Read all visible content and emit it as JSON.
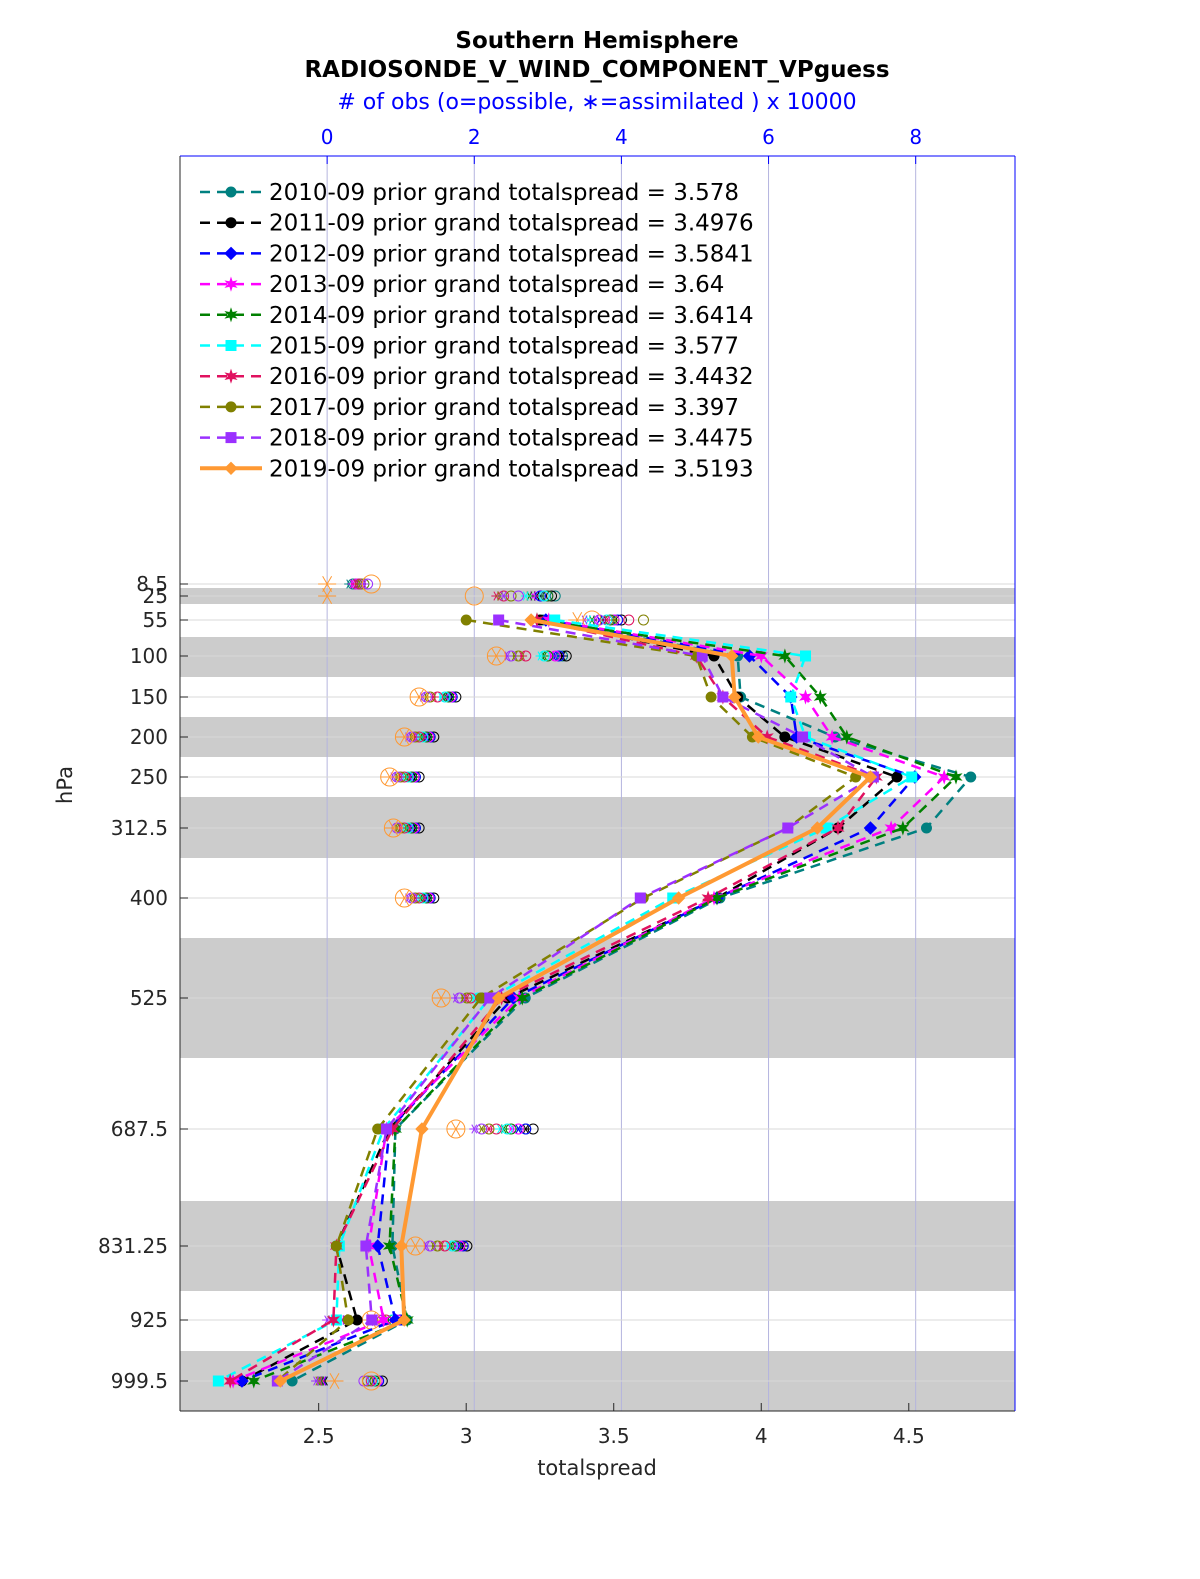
{
  "chart_data": {
    "type": "line",
    "title": "Southern Hemisphere",
    "subtitle": "RADIOSONDE_V_WIND_COMPONENT_VPguess",
    "top_axis_label": "# of obs (o=possible, ∗=assimilated ) x 10000",
    "xlabel": "totalspread",
    "ylabel": "hPa",
    "xlim": [
      2.03,
      4.86
    ],
    "x_ticks": [
      "2.5",
      "3",
      "3.5",
      "4",
      "4.5"
    ],
    "top_xlim": [
      -2.0,
      9.35
    ],
    "top_ticks": [
      "0",
      "2",
      "4",
      "6",
      "8"
    ],
    "y_levels": [
      8.5,
      25,
      55,
      100,
      150,
      200,
      250,
      312.5,
      400,
      525,
      687.5,
      831.25,
      925,
      999.5
    ],
    "y_tick_labels": [
      "8.5",
      "25",
      "55",
      "100",
      "150",
      "200",
      "250",
      "312.5",
      "400",
      "525",
      "687.5",
      "831.25",
      "925",
      "999.5"
    ],
    "y_direction": "reversed",
    "grid": true,
    "legend_position": "top-left",
    "series": [
      {
        "name": "2010-09 prior grand totalspread = 3.578",
        "color": "#008080",
        "marker": "circle",
        "style": "dashed",
        "values": [
          null,
          null,
          3.26,
          3.92,
          3.93,
          4.25,
          4.71,
          4.56,
          3.86,
          3.2,
          2.76,
          2.75,
          2.8,
          2.41
        ]
      },
      {
        "name": "2011-09 prior grand totalspread = 3.4976",
        "color": "#000000",
        "marker": "circle",
        "style": "dashed",
        "values": [
          null,
          null,
          3.25,
          3.84,
          3.92,
          4.08,
          4.46,
          4.26,
          3.85,
          3.14,
          2.74,
          2.56,
          2.63,
          2.24
        ]
      },
      {
        "name": "2012-09 prior grand totalspread = 3.5841",
        "color": "#0000ff",
        "marker": "diamond",
        "style": "dashed",
        "values": [
          null,
          null,
          3.27,
          3.96,
          4.1,
          4.12,
          4.52,
          4.37,
          3.85,
          3.16,
          2.74,
          2.7,
          2.76,
          2.24
        ]
      },
      {
        "name": "2013-09 prior grand totalspread = 3.64",
        "color": "#ff00ff",
        "marker": "star",
        "style": "dashed",
        "values": [
          null,
          null,
          3.28,
          4.0,
          4.15,
          4.24,
          4.62,
          4.44,
          3.84,
          3.18,
          2.73,
          2.67,
          2.72,
          2.21
        ]
      },
      {
        "name": "2014-09 prior grand totalspread = 3.6414",
        "color": "#008000",
        "marker": "star",
        "style": "dashed",
        "values": [
          null,
          null,
          3.24,
          4.08,
          4.2,
          4.29,
          4.66,
          4.48,
          3.85,
          3.19,
          2.76,
          2.74,
          2.8,
          2.28
        ]
      },
      {
        "name": "2015-09 prior grand totalspread = 3.577",
        "color": "#00ffff",
        "marker": "square",
        "style": "dashed",
        "values": [
          null,
          null,
          3.3,
          4.15,
          4.1,
          4.15,
          4.51,
          4.22,
          3.7,
          3.08,
          2.72,
          2.57,
          2.56,
          2.16
        ]
      },
      {
        "name": "2016-09 prior grand totalspread = 3.4432",
        "color": "#e0115f",
        "marker": "star",
        "style": "dashed",
        "values": [
          null,
          null,
          3.24,
          3.78,
          3.87,
          4.02,
          4.39,
          4.26,
          3.82,
          3.12,
          2.75,
          2.56,
          2.55,
          2.2
        ]
      },
      {
        "name": "2017-09 prior grand totalspread = 3.397",
        "color": "#808000",
        "marker": "circle",
        "style": "dashed",
        "values": [
          null,
          null,
          3.0,
          3.78,
          3.83,
          3.97,
          4.32,
          4.09,
          3.6,
          3.05,
          2.7,
          2.56,
          2.6,
          2.36
        ]
      },
      {
        "name": "2018-09 prior grand totalspread = 3.4475",
        "color": "#9b30ff",
        "marker": "square",
        "style": "dashed",
        "values": [
          null,
          null,
          3.11,
          3.8,
          3.87,
          4.14,
          4.38,
          4.09,
          3.59,
          3.08,
          2.73,
          2.66,
          2.68,
          2.36
        ]
      },
      {
        "name": "2019-09 prior grand totalspread = 3.5193",
        "color": "#ff9933",
        "marker": "diamond",
        "style": "solid",
        "values": [
          null,
          null,
          3.22,
          3.9,
          3.91,
          3.99,
          4.37,
          4.19,
          3.72,
          3.11,
          2.85,
          2.78,
          2.79,
          2.37
        ]
      }
    ],
    "obs_counts_x10000": {
      "possible": [
        [
          0.35,
          3.1,
          3.9,
          3.2,
          1.7,
          1.4,
          1.2,
          1.2,
          1.4,
          2.2,
          2.7,
          1.8,
          1.0,
          0.7
        ],
        [
          0.4,
          3.05,
          4.0,
          3.25,
          1.75,
          1.45,
          1.25,
          1.25,
          1.45,
          2.3,
          2.8,
          1.9,
          1.05,
          0.75
        ],
        [
          0.45,
          2.9,
          3.95,
          3.15,
          1.7,
          1.4,
          1.2,
          1.2,
          1.4,
          2.2,
          2.7,
          1.85,
          1.0,
          0.7
        ],
        [
          0.4,
          3.0,
          3.9,
          3.1,
          1.68,
          1.38,
          1.18,
          1.18,
          1.38,
          2.15,
          2.6,
          1.8,
          0.95,
          0.68
        ],
        [
          0.45,
          3.0,
          3.85,
          3.0,
          1.65,
          1.35,
          1.15,
          1.15,
          1.35,
          2.1,
          2.5,
          1.75,
          0.9,
          0.65
        ],
        [
          0.5,
          2.95,
          3.8,
          2.95,
          1.6,
          1.3,
          1.1,
          1.1,
          1.3,
          2.05,
          2.45,
          1.7,
          0.88,
          0.62
        ],
        [
          0.45,
          2.4,
          4.1,
          2.7,
          1.5,
          1.25,
          1.05,
          1.05,
          1.25,
          1.95,
          2.3,
          1.6,
          0.8,
          0.6
        ],
        [
          0.5,
          2.5,
          4.3,
          2.6,
          1.4,
          1.2,
          1.0,
          1.0,
          1.2,
          1.9,
          2.2,
          1.5,
          0.75,
          0.55
        ],
        [
          0.55,
          2.6,
          3.7,
          2.5,
          1.35,
          1.15,
          0.95,
          0.95,
          1.15,
          1.8,
          2.1,
          1.4,
          0.7,
          0.5
        ],
        [
          0.6,
          2.0,
          3.6,
          2.3,
          1.25,
          1.05,
          0.85,
          0.9,
          1.05,
          1.55,
          1.75,
          1.2,
          0.6,
          0.6
        ]
      ],
      "assimilated": [
        [
          0.3,
          2.9,
          3.7,
          3.15,
          1.65,
          1.35,
          1.15,
          1.15,
          1.35,
          2.15,
          2.6,
          1.75,
          0.25,
          -0.05
        ],
        [
          0.35,
          2.85,
          3.75,
          3.2,
          1.7,
          1.4,
          1.2,
          1.2,
          1.4,
          2.25,
          2.7,
          1.85,
          0.3,
          -0.03
        ],
        [
          0.35,
          2.8,
          3.7,
          3.1,
          1.65,
          1.35,
          1.15,
          1.15,
          1.35,
          2.15,
          2.6,
          1.8,
          0.25,
          -0.05
        ],
        [
          0.35,
          2.8,
          3.65,
          3.05,
          1.62,
          1.33,
          1.13,
          1.13,
          1.33,
          2.1,
          2.5,
          1.75,
          0.2,
          -0.06
        ],
        [
          0.4,
          2.75,
          3.6,
          2.95,
          1.6,
          1.3,
          1.1,
          1.1,
          1.3,
          2.05,
          2.4,
          1.7,
          0.15,
          -0.08
        ],
        [
          0.45,
          2.7,
          3.55,
          2.9,
          1.55,
          1.25,
          1.05,
          1.05,
          1.25,
          2.0,
          2.35,
          1.65,
          0.12,
          -0.1
        ],
        [
          0.4,
          2.3,
          3.8,
          2.65,
          1.45,
          1.2,
          1.0,
          1.0,
          1.2,
          1.9,
          2.2,
          1.55,
          0.1,
          -0.1
        ],
        [
          0.45,
          2.35,
          3.9,
          2.55,
          1.35,
          1.15,
          0.95,
          0.95,
          1.15,
          1.85,
          2.1,
          1.45,
          0.05,
          -0.12
        ],
        [
          0.5,
          2.4,
          3.5,
          2.45,
          1.3,
          1.1,
          0.9,
          0.9,
          1.1,
          1.75,
          2.0,
          1.35,
          0.0,
          -0.15
        ],
        [
          0.0,
          0.0,
          3.4,
          2.3,
          1.25,
          1.05,
          0.85,
          0.9,
          1.05,
          1.55,
          1.75,
          1.2,
          0.6,
          0.1
        ]
      ]
    }
  }
}
